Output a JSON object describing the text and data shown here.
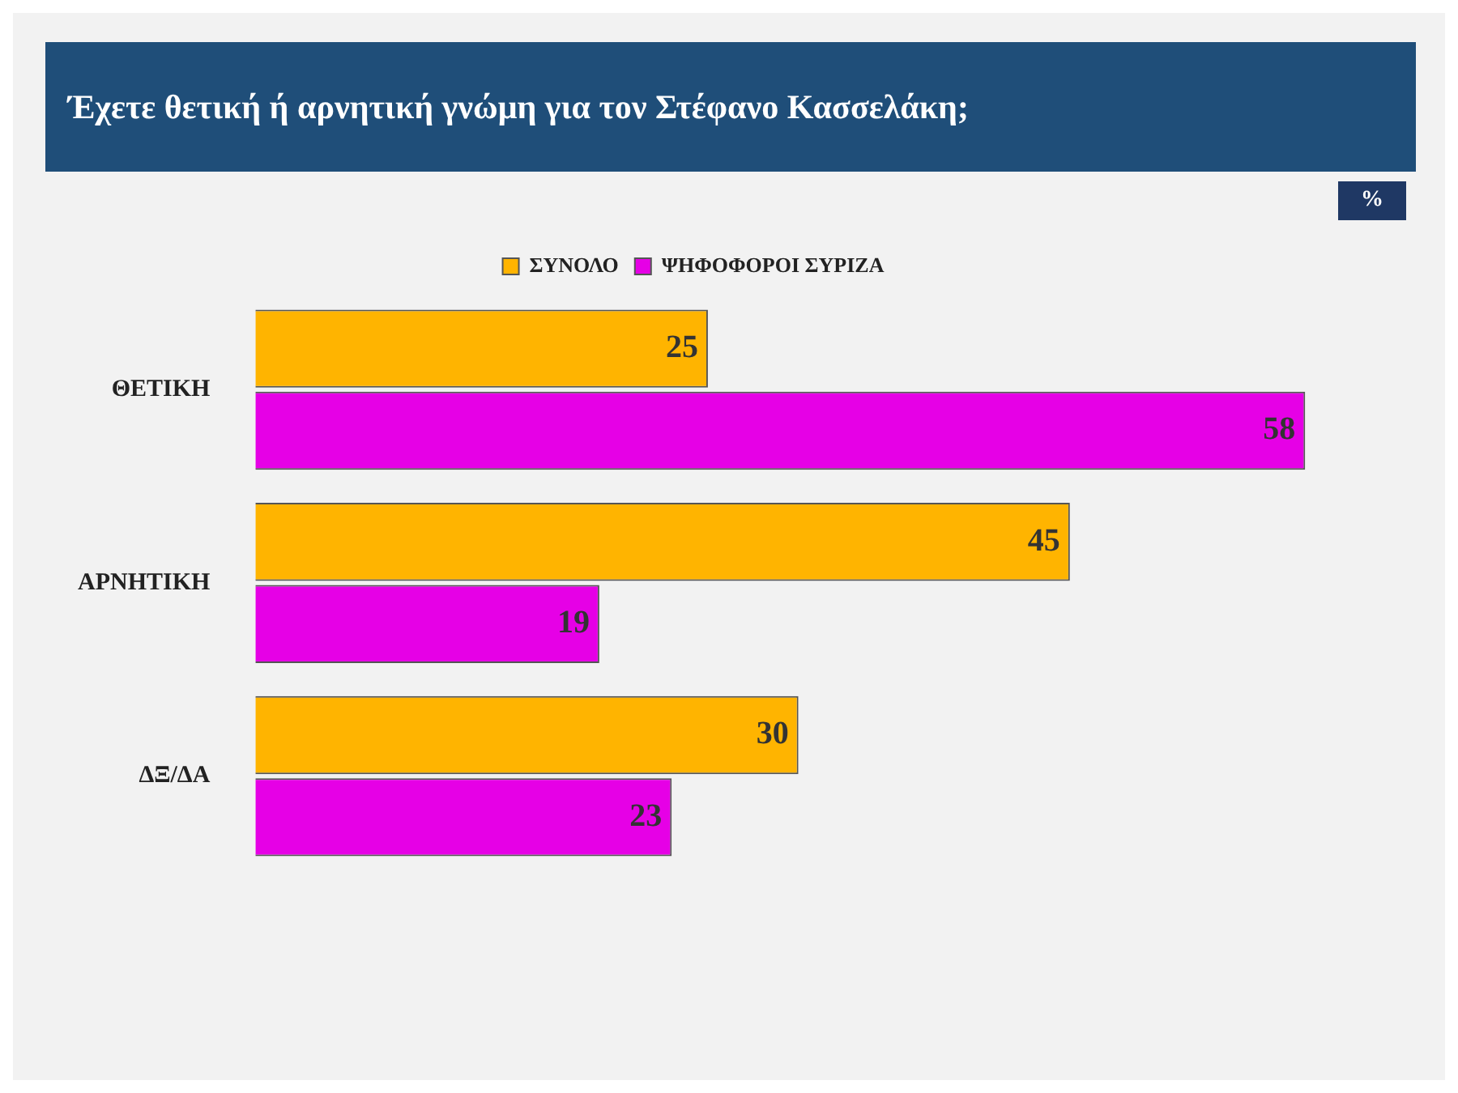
{
  "chart_data": {
    "type": "bar",
    "title": "Έχετε θετική ή αρνητική γνώμη για τον Στέφανο Κασσελάκη;",
    "annotations": [
      "%"
    ],
    "orientation": "horizontal",
    "categories": [
      "ΘΕΤΙΚΗ",
      "ΑΡΝΗΤΙΚΗ",
      "ΔΞ/ΔΑ"
    ],
    "series": [
      {
        "name": "ΣΥΝΟΛΟ",
        "color": "#ffb400",
        "values": [
          25,
          45,
          30
        ]
      },
      {
        "name": "ΨΗΦΟΦΟΡΟΙ ΣΥΡΙΖΑ",
        "color": "#e600e6",
        "values": [
          58,
          19,
          23
        ]
      }
    ],
    "data_labels": true,
    "legend": "top",
    "grid": false
  }
}
